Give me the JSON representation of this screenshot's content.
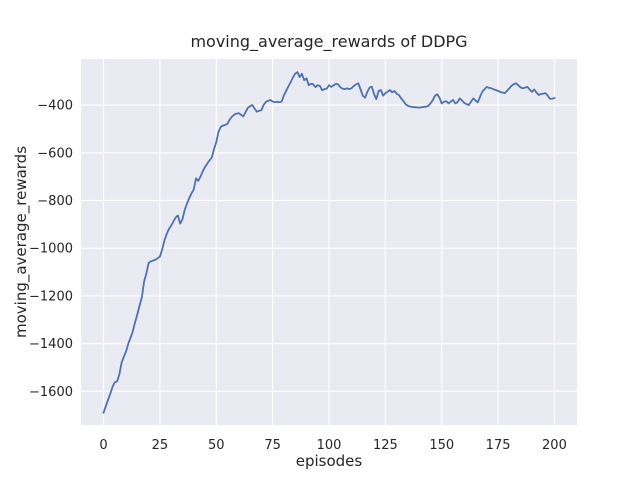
{
  "chart_data": {
    "type": "line",
    "title": "moving_average_rewards of DDPG",
    "xlabel": "episodes",
    "ylabel": "moving_average_rewards",
    "x_min": 0,
    "x_step": 1,
    "y": [
      -1690,
      -1662,
      -1635,
      -1610,
      -1580,
      -1562,
      -1558,
      -1530,
      -1480,
      -1455,
      -1432,
      -1400,
      -1375,
      -1347,
      -1310,
      -1276,
      -1240,
      -1205,
      -1140,
      -1105,
      -1062,
      -1055,
      -1052,
      -1048,
      -1042,
      -1035,
      -1005,
      -968,
      -940,
      -920,
      -905,
      -888,
      -871,
      -863,
      -897,
      -878,
      -840,
      -813,
      -790,
      -770,
      -755,
      -707,
      -718,
      -700,
      -678,
      -660,
      -645,
      -632,
      -620,
      -585,
      -555,
      -512,
      -491,
      -486,
      -483,
      -478,
      -460,
      -448,
      -440,
      -436,
      -434,
      -441,
      -448,
      -430,
      -412,
      -405,
      -400,
      -415,
      -428,
      -424,
      -421,
      -400,
      -387,
      -382,
      -379,
      -385,
      -388,
      -386,
      -388,
      -385,
      -360,
      -340,
      -322,
      -304,
      -285,
      -268,
      -262,
      -283,
      -269,
      -296,
      -288,
      -317,
      -311,
      -313,
      -325,
      -317,
      -320,
      -338,
      -333,
      -331,
      -317,
      -324,
      -318,
      -311,
      -313,
      -325,
      -331,
      -333,
      -330,
      -333,
      -330,
      -320,
      -313,
      -309,
      -335,
      -361,
      -369,
      -345,
      -327,
      -323,
      -355,
      -375,
      -341,
      -337,
      -361,
      -350,
      -344,
      -337,
      -347,
      -341,
      -352,
      -358,
      -372,
      -383,
      -397,
      -403,
      -406,
      -408,
      -409,
      -410,
      -411,
      -409,
      -408,
      -407,
      -404,
      -393,
      -380,
      -361,
      -355,
      -369,
      -393,
      -386,
      -384,
      -393,
      -386,
      -379,
      -393,
      -388,
      -372,
      -381,
      -391,
      -396,
      -400,
      -386,
      -372,
      -381,
      -389,
      -365,
      -344,
      -333,
      -324,
      -328,
      -330,
      -334,
      -337,
      -341,
      -345,
      -348,
      -350,
      -340,
      -330,
      -319,
      -312,
      -309,
      -318,
      -326,
      -330,
      -327,
      -324,
      -335,
      -345,
      -335,
      -347,
      -358,
      -354,
      -352,
      -350,
      -360,
      -374,
      -373,
      -371
    ],
    "xticks": {
      "values": [
        0,
        25,
        50,
        75,
        100,
        125,
        150,
        175,
        200
      ],
      "labels": [
        "0",
        "25",
        "50",
        "75",
        "100",
        "125",
        "150",
        "175",
        "200"
      ]
    },
    "yticks": {
      "values": [
        -400,
        -600,
        -800,
        -1000,
        -1200,
        -1400,
        -1600
      ],
      "labels": [
        "−400",
        "−600",
        "−800",
        "−1000",
        "−1200",
        "−1400",
        "−1600"
      ]
    },
    "xlim": [
      -10,
      210
    ],
    "ylim": [
      -1741,
      -207
    ],
    "grid": true,
    "legend": "none",
    "colors": {
      "line": "#4c72b0",
      "plot_background": "#eaeaf2",
      "grid": "#ffffff",
      "text": "#262626",
      "figure_background": "#ffffff"
    }
  }
}
